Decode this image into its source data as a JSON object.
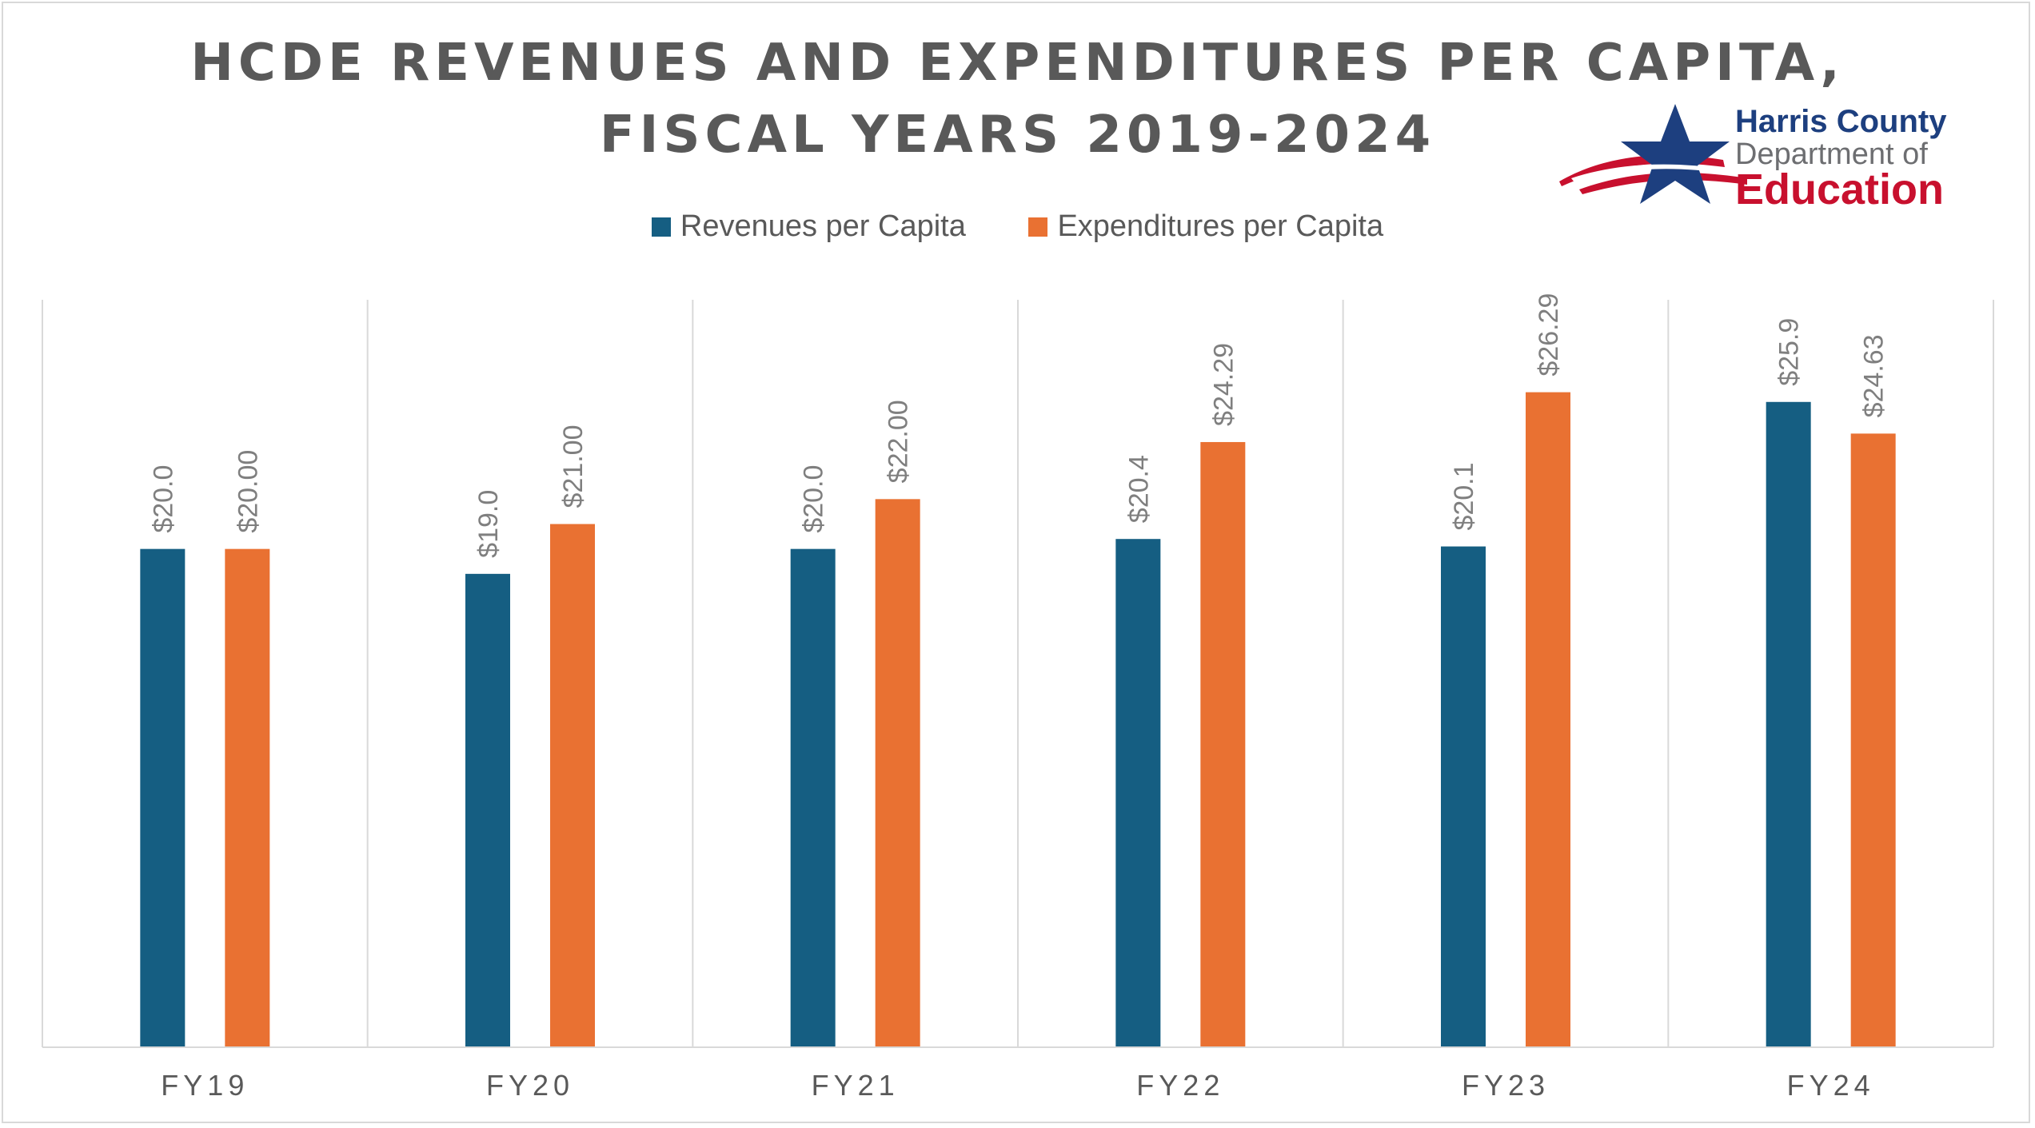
{
  "chart_data": {
    "type": "bar",
    "title_line1": "HCDE REVENUES AND EXPENDITURES PER CAPITA,",
    "title_line2": "FISCAL YEARS 2019-2024",
    "categories": [
      "FY19",
      "FY20",
      "FY21",
      "FY22",
      "FY23",
      "FY24"
    ],
    "series": [
      {
        "name": "Revenues per Capita",
        "color": "#155e82",
        "values": [
          20.0,
          19.0,
          20.0,
          20.4,
          20.1,
          25.9
        ],
        "labels": [
          "$20.0",
          "$19.0",
          "$20.0",
          "$20.4",
          "$20.1",
          "$25.9"
        ]
      },
      {
        "name": "Expenditures per Capita",
        "color": "#e97132",
        "values": [
          20.0,
          21.0,
          22.0,
          24.29,
          26.29,
          24.63
        ],
        "labels": [
          "$20.00",
          "$21.00",
          "$22.00",
          "$24.29",
          "$26.29",
          "$24.63"
        ]
      }
    ],
    "ylim": [
      0,
      30
    ],
    "grid": "vertical category separators",
    "legend_position": "top-center"
  },
  "logo": {
    "line1": "Harris County",
    "line2": "Department of",
    "line3": "Education",
    "navy": "#1d3f7f",
    "red": "#c8102e",
    "gray": "#6d6e71"
  }
}
